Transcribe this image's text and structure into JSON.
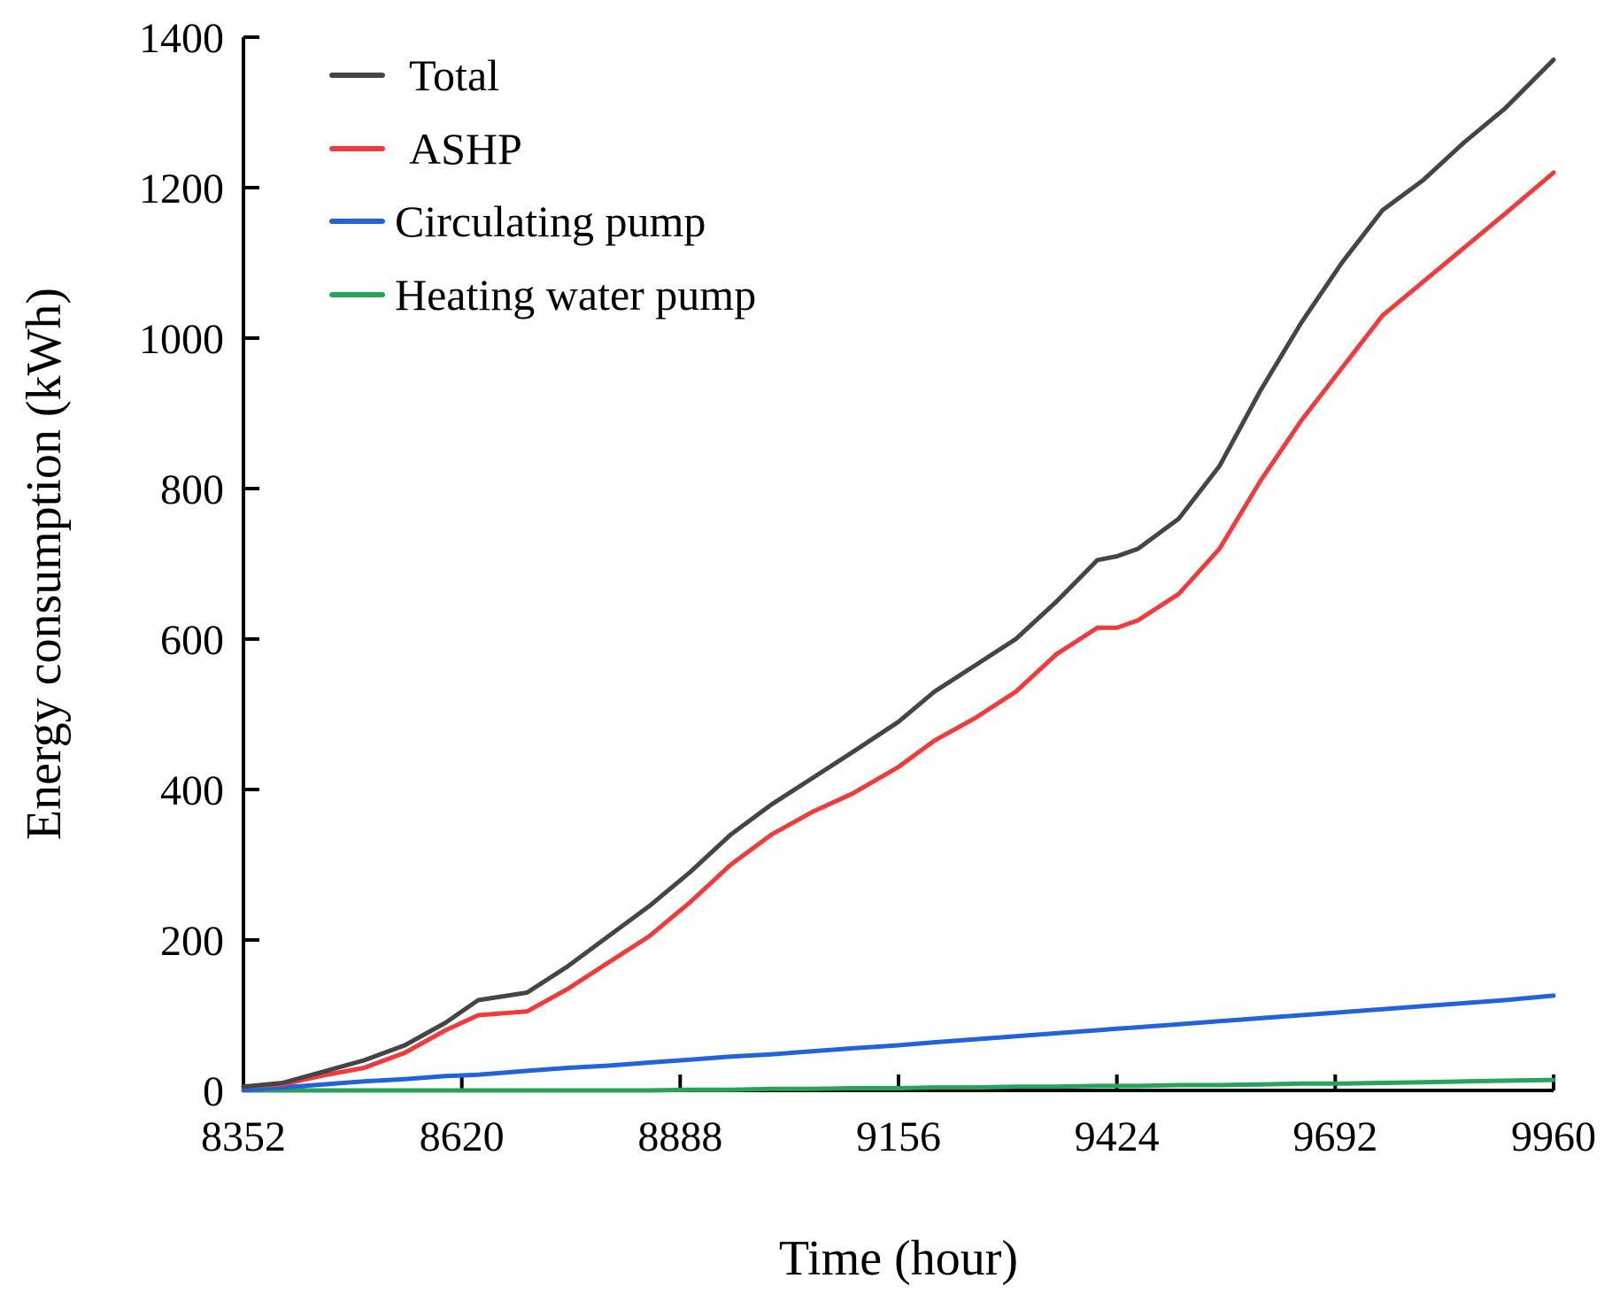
{
  "chart_data": {
    "type": "line",
    "title": "",
    "xlabel": "Time (hour)",
    "ylabel": "Energy consumption (kWh)",
    "xlim": [
      8352,
      9960
    ],
    "ylim": [
      0,
      1400
    ],
    "xticks": [
      8352,
      8620,
      8888,
      9156,
      9424,
      9692,
      9960
    ],
    "yticks": [
      0,
      200,
      400,
      600,
      800,
      1000,
      1200,
      1400
    ],
    "grid": false,
    "legend_position": "top-left",
    "x": [
      8352,
      8400,
      8450,
      8500,
      8550,
      8600,
      8640,
      8700,
      8750,
      8800,
      8850,
      8900,
      8950,
      9000,
      9050,
      9100,
      9156,
      9200,
      9250,
      9300,
      9350,
      9400,
      9424,
      9450,
      9500,
      9550,
      9600,
      9650,
      9700,
      9750,
      9800,
      9850,
      9900,
      9960
    ],
    "series": [
      {
        "name": "Total",
        "color": "#454545",
        "values": [
          5,
          10,
          25,
          40,
          60,
          90,
          120,
          130,
          165,
          205,
          245,
          290,
          340,
          380,
          415,
          450,
          490,
          530,
          565,
          600,
          650,
          705,
          710,
          720,
          760,
          830,
          930,
          1020,
          1100,
          1170,
          1210,
          1260,
          1305,
          1370
        ]
      },
      {
        "name": "ASHP",
        "color": "#f23a3a",
        "values": [
          5,
          8,
          20,
          30,
          50,
          80,
          100,
          105,
          135,
          170,
          205,
          250,
          300,
          340,
          370,
          395,
          430,
          465,
          495,
          530,
          580,
          615,
          615,
          625,
          660,
          720,
          810,
          890,
          960,
          1030,
          1075,
          1120,
          1165,
          1220
        ]
      },
      {
        "name": "Circulating pump",
        "color": "#2163d8",
        "values": [
          0,
          4,
          8,
          12,
          15,
          19,
          21,
          26,
          30,
          33,
          37,
          41,
          45,
          48,
          52,
          56,
          60,
          64,
          68,
          72,
          76,
          80,
          82,
          84,
          88,
          92,
          96,
          100,
          104,
          108,
          112,
          116,
          120,
          126
        ]
      },
      {
        "name": "Heating water pump",
        "color": "#27a35a",
        "values": [
          0,
          0,
          0,
          0,
          0,
          0,
          0,
          0,
          0,
          0,
          0,
          1,
          1,
          2,
          2,
          3,
          3,
          4,
          4,
          5,
          5,
          6,
          6,
          6,
          7,
          7,
          8,
          9,
          9,
          10,
          11,
          12,
          13,
          14
        ]
      }
    ]
  }
}
